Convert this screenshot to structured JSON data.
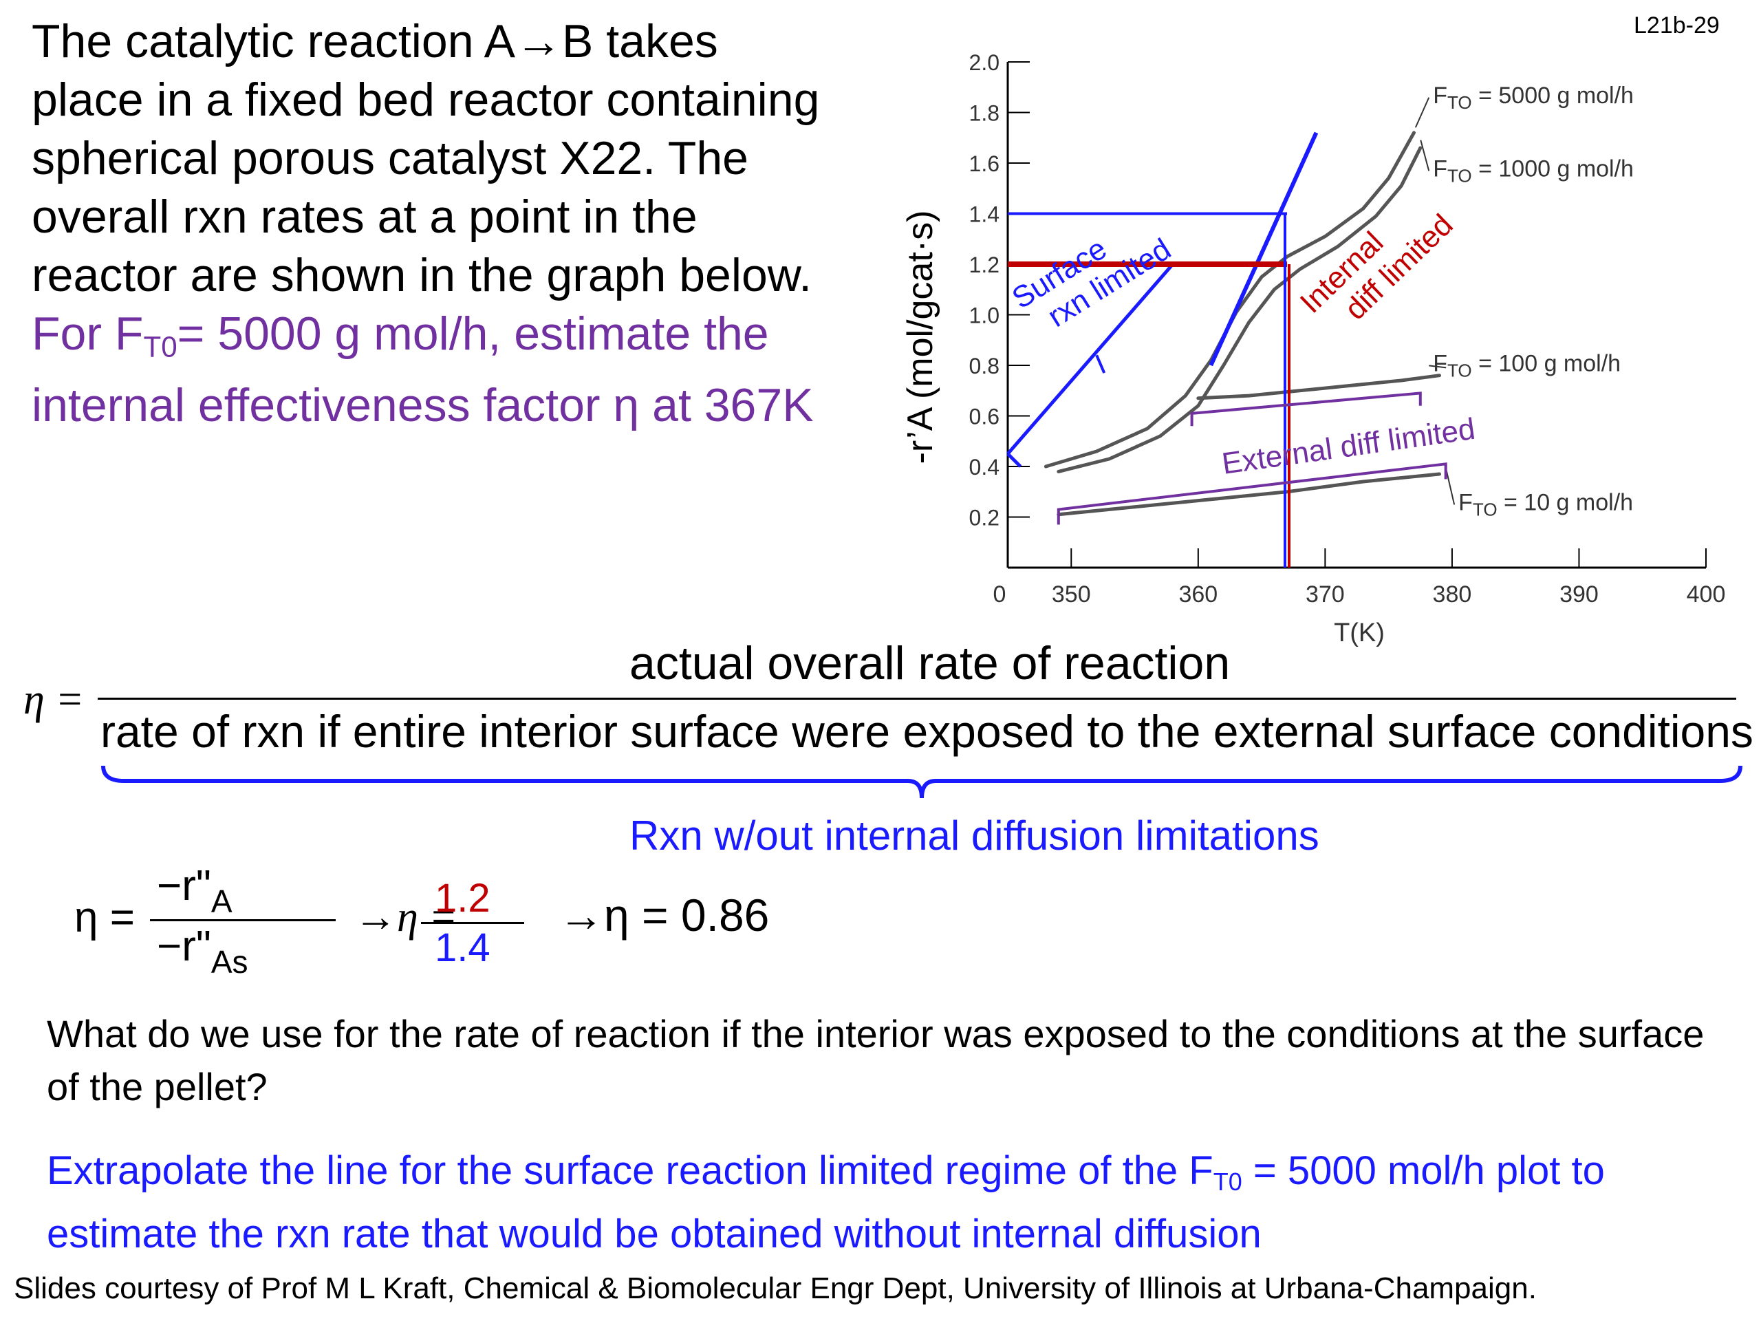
{
  "slide_id": "L21b-29",
  "problem": {
    "line1": "The catalytic reaction A→B takes",
    "line2": "place in a fixed bed reactor containing",
    "line3": "spherical porous catalyst X22.  The",
    "line4": "overall rxn rates at a point in the",
    "line5": "reactor are shown in the graph below.",
    "q_pre": "For F",
    "q_sub": "T0",
    "q_post": "= 5000 g mol/h, estimate the",
    "q_line2": "internal effectiveness factor η at 367K"
  },
  "colors": {
    "purple": "#7030a0",
    "blue": "#1a1aff",
    "red": "#c00000",
    "curve": "#555555"
  },
  "chart_data": {
    "type": "line",
    "xlabel": "T(K)",
    "ylabel": "-r’A (mol/gcat·s)",
    "xlim": [
      345,
      400
    ],
    "ylim": [
      0,
      2.0
    ],
    "x_ticks": [
      "0",
      "350",
      "360",
      "370",
      "380",
      "390",
      "400"
    ],
    "y_ticks": [
      "0.2",
      "0.4",
      "0.6",
      "0.8",
      "1.0",
      "1.2",
      "1.4",
      "1.6",
      "1.8",
      "2.0"
    ],
    "series": [
      {
        "name": "FTO = 5000 g mol/h",
        "label_pre": "F",
        "label_sub": "TO",
        "label_post": " = 5000 g mol/h",
        "x": [
          348,
          352,
          356,
          359,
          361,
          363,
          365,
          367,
          370,
          373,
          375,
          377
        ],
        "y": [
          0.4,
          0.46,
          0.55,
          0.68,
          0.82,
          1.01,
          1.15,
          1.23,
          1.31,
          1.42,
          1.54,
          1.72
        ]
      },
      {
        "name": "FTO = 1000 g mol/h",
        "label_pre": "F",
        "label_sub": "TO",
        "label_post": " = 1000 g mol/h",
        "x": [
          349,
          353,
          357,
          360,
          362,
          364,
          366,
          368,
          371,
          374,
          376,
          377.5
        ],
        "y": [
          0.38,
          0.43,
          0.52,
          0.64,
          0.8,
          0.97,
          1.1,
          1.18,
          1.27,
          1.39,
          1.51,
          1.66
        ]
      },
      {
        "name": "FTO = 100 g mol/h",
        "label_pre": "F",
        "label_sub": "TO",
        "label_post": " = 100 g mol/h",
        "x": [
          360,
          364,
          368,
          372,
          376,
          379
        ],
        "y": [
          0.67,
          0.68,
          0.7,
          0.72,
          0.74,
          0.76
        ]
      },
      {
        "name": "FTO = 10 g mol/h",
        "label_pre": "F",
        "label_sub": "TO",
        "label_post": " = 10 g mol/h",
        "x": [
          349,
          355,
          361,
          367,
          373,
          379
        ],
        "y": [
          0.21,
          0.24,
          0.27,
          0.3,
          0.34,
          0.37
        ]
      }
    ],
    "annotations": {
      "surface": [
        "Surface",
        "rxn limited"
      ],
      "internal": [
        "Internal",
        "diff limited"
      ],
      "external": "External diff limited",
      "measured_rate": 1.2,
      "extrapolated_rate": 1.4,
      "temperature": 367
    }
  },
  "eta_def": {
    "lhs": "η =",
    "numerator": "actual overall rate of reaction",
    "denominator": "rate of rxn if entire interior surface were exposed to the external surface conditions",
    "brace_label": "Rxn w/out internal diffusion limitations"
  },
  "formula": {
    "eta": "η =",
    "num": "−r\"",
    "num_sub": "A",
    "den": "−r\"",
    "den_sub": "As",
    "arrow1": "→η =",
    "val_num": "1.2",
    "val_den": "1.4",
    "arrow2": "→η = 0.86"
  },
  "question": "What do we use for the rate of reaction if the interior was exposed to the conditions at the surface of the pellet?",
  "answer": {
    "pre": "Extrapolate the line for the surface reaction limited regime of the F",
    "sub": "T0",
    "post": " = 5000 mol/h plot to estimate the rxn rate that would be obtained without internal diffusion"
  },
  "credit": "Slides courtesy of Prof M L Kraft, Chemical & Biomolecular Engr Dept, University of Illinois at Urbana-Champaign."
}
